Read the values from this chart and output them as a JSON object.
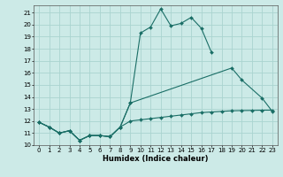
{
  "xlabel": "Humidex (Indice chaleur)",
  "background_color": "#cceae7",
  "grid_color": "#aad4d0",
  "line_color": "#1a6e66",
  "xlim": [
    -0.5,
    23.5
  ],
  "ylim": [
    10,
    21.6
  ],
  "yticks": [
    10,
    11,
    12,
    13,
    14,
    15,
    16,
    17,
    18,
    19,
    20,
    21
  ],
  "xticks": [
    0,
    1,
    2,
    3,
    4,
    5,
    6,
    7,
    8,
    9,
    10,
    11,
    12,
    13,
    14,
    15,
    16,
    17,
    18,
    19,
    20,
    21,
    22,
    23
  ],
  "line1_x": [
    0,
    1,
    2,
    3,
    4,
    5,
    6,
    7,
    8,
    9,
    10,
    11,
    12,
    13,
    14,
    15,
    16,
    17
  ],
  "line1_y": [
    11.9,
    11.5,
    11.0,
    11.2,
    10.4,
    10.8,
    10.8,
    10.7,
    11.5,
    13.5,
    19.3,
    19.8,
    21.3,
    19.9,
    20.1,
    20.6,
    19.7,
    17.7
  ],
  "line2_x": [
    0,
    1,
    2,
    3,
    4,
    5,
    6,
    7,
    8,
    9,
    19,
    20,
    22,
    23
  ],
  "line2_y": [
    11.9,
    11.5,
    11.0,
    11.2,
    10.4,
    10.8,
    10.8,
    10.7,
    11.5,
    13.5,
    16.4,
    15.4,
    13.9,
    12.8
  ],
  "line3_x": [
    0,
    1,
    2,
    3,
    4,
    5,
    6,
    7,
    8,
    9,
    10,
    11,
    12,
    13,
    14,
    15,
    16,
    17,
    18,
    19,
    20,
    21,
    22,
    23
  ],
  "line3_y": [
    11.9,
    11.5,
    11.0,
    11.2,
    10.4,
    10.8,
    10.8,
    10.7,
    11.5,
    12.0,
    12.1,
    12.2,
    12.3,
    12.4,
    12.5,
    12.6,
    12.7,
    12.75,
    12.8,
    12.85,
    12.87,
    12.88,
    12.9,
    12.9
  ]
}
